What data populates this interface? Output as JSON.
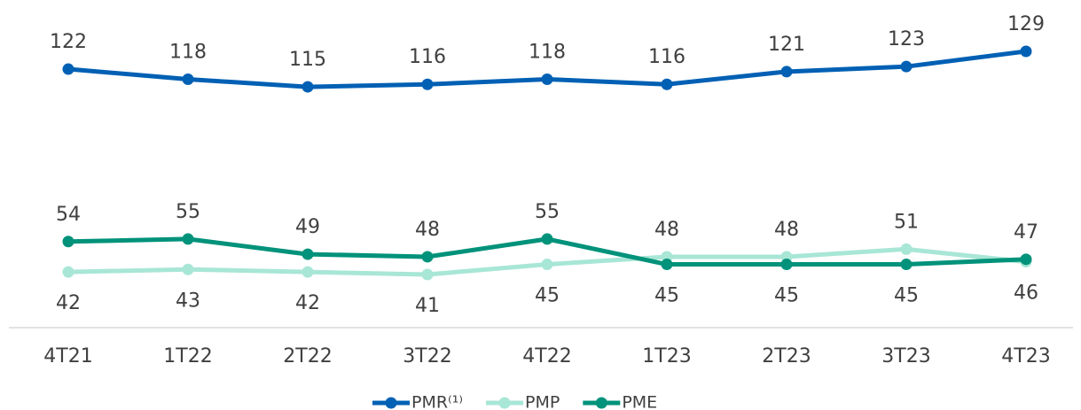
{
  "chart_data": {
    "type": "line",
    "categories": [
      "4T21",
      "1T22",
      "2T22",
      "3T22",
      "4T22",
      "1T23",
      "2T23",
      "3T23",
      "4T23"
    ],
    "series": [
      {
        "name": "PMR⁽¹⁾",
        "color": "#0060b4",
        "values": [
          122,
          118,
          115,
          116,
          118,
          116,
          121,
          123,
          129
        ]
      },
      {
        "name": "PMP",
        "color": "#a8e6d6",
        "values": [
          42,
          43,
          42,
          41,
          45,
          48,
          48,
          51,
          46
        ]
      },
      {
        "name": "PME",
        "color": "#00927a",
        "values": [
          54,
          55,
          49,
          48,
          55,
          45,
          45,
          45,
          47
        ]
      }
    ],
    "legend": "bottom"
  }
}
